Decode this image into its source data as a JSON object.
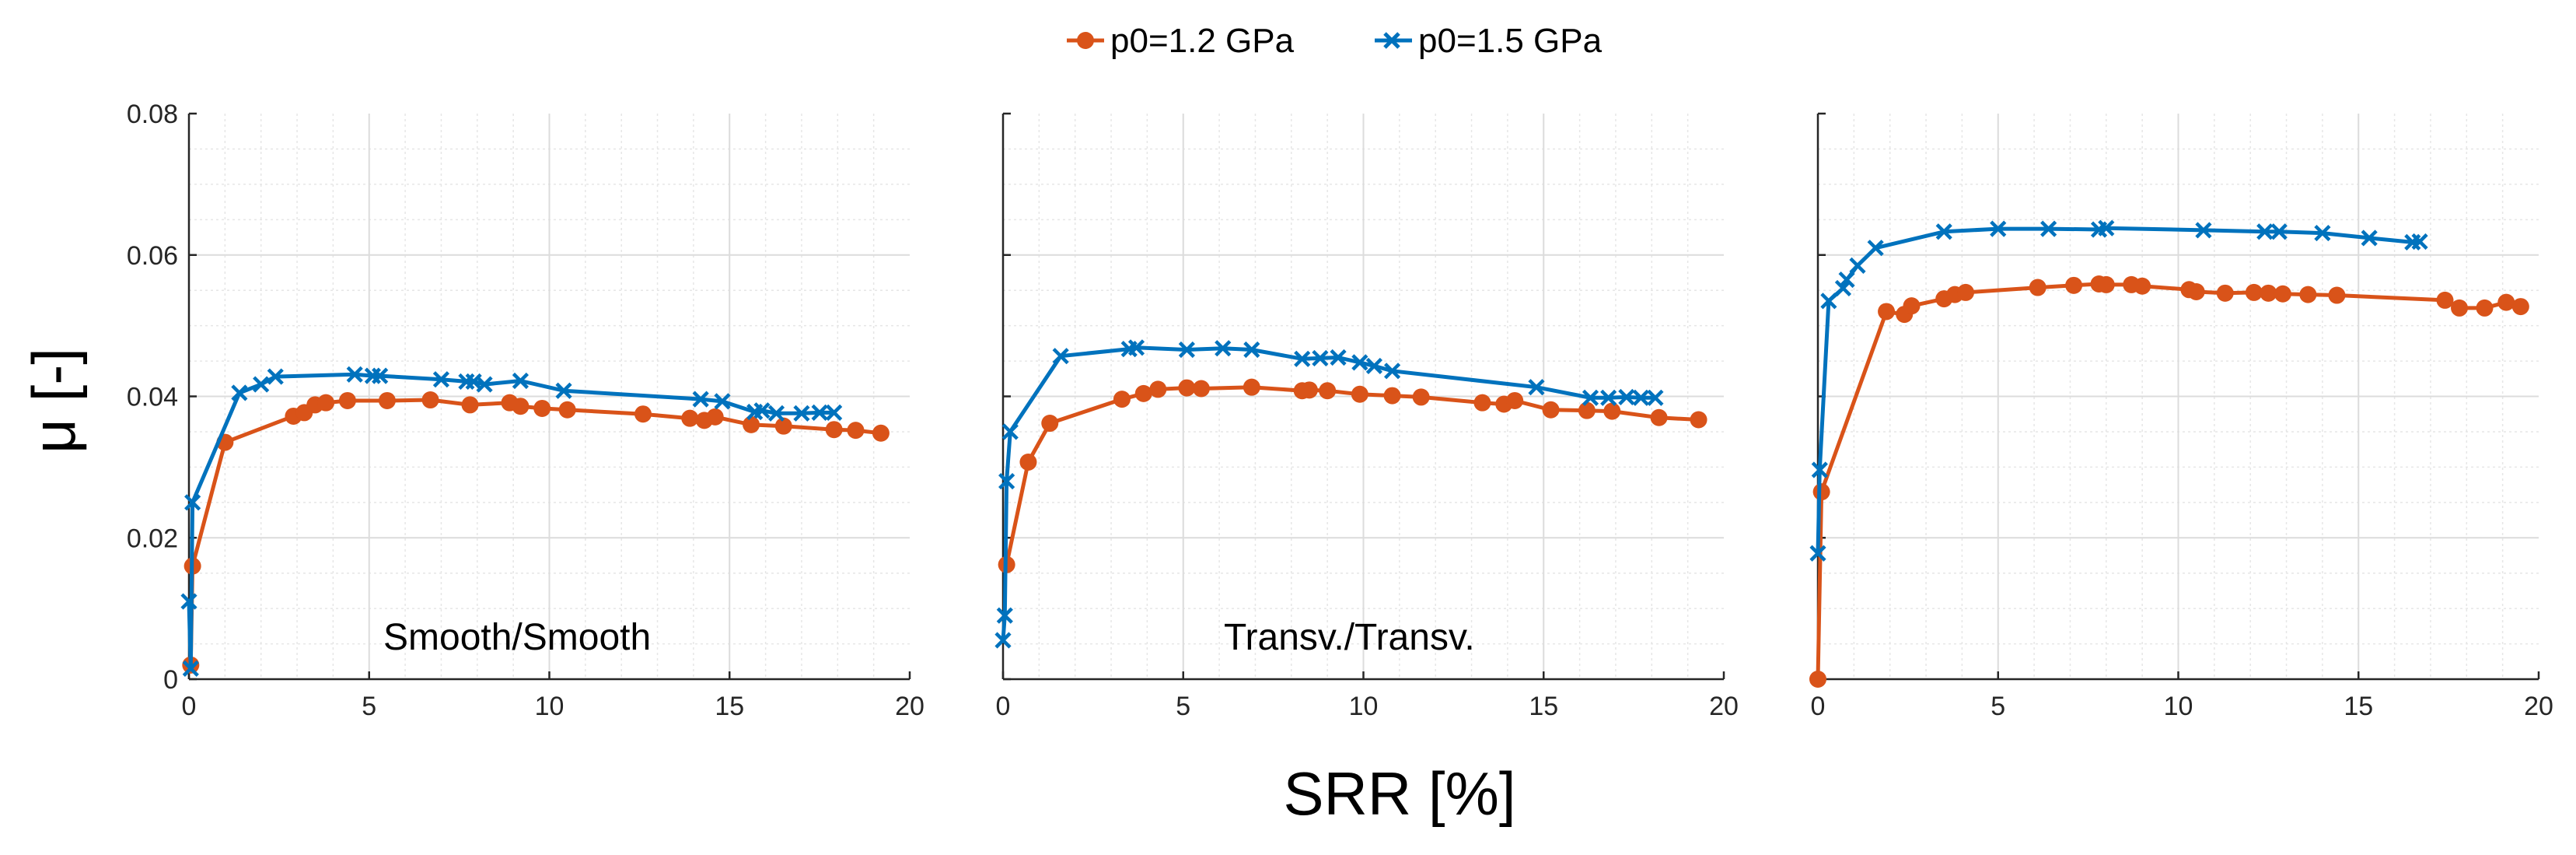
{
  "chart_data": {
    "type": "line",
    "xlabel": "SRR [%]",
    "ylabel": "μ [-]",
    "xlim": [
      0,
      20
    ],
    "ylim": [
      0,
      0.08
    ],
    "xticks": [
      0,
      5,
      10,
      15,
      20
    ],
    "xtick_labels": [
      "0",
      "5",
      "10",
      "15",
      "20"
    ],
    "yticks": [
      0,
      0.02,
      0.04,
      0.06,
      0.08
    ],
    "ytick_labels": [
      "0",
      "0.02",
      "0.04",
      "0.06",
      "0.08"
    ],
    "grid": true,
    "legend_position": "top-center",
    "legend": [
      {
        "name": "p0=1.2 GPa",
        "color": "#D95319",
        "marker": "circle"
      },
      {
        "name": "p0=1.5 GPa",
        "color": "#0072BD",
        "marker": "x"
      }
    ],
    "panels": [
      {
        "label": "Smooth/Smooth",
        "series": [
          {
            "name": "p0=1.2 GPa",
            "x": [
              0.05,
              0.1,
              1.0,
              2.9,
              3.2,
              3.5,
              3.8,
              4.4,
              5.5,
              6.7,
              7.8,
              8.9,
              9.2,
              9.8,
              10.5,
              12.6,
              13.9,
              14.3,
              14.6,
              15.6,
              16.5,
              17.9,
              18.5,
              19.2
            ],
            "y": [
              0.002,
              0.016,
              0.0335,
              0.0372,
              0.0377,
              0.0388,
              0.0391,
              0.0394,
              0.0394,
              0.0395,
              0.0388,
              0.0391,
              0.0386,
              0.0383,
              0.0381,
              0.0375,
              0.0369,
              0.0366,
              0.0371,
              0.036,
              0.0358,
              0.0353,
              0.0352,
              0.0348
            ]
          },
          {
            "name": "p0=1.5 GPa",
            "x": [
              0.0,
              0.05,
              0.1,
              1.4,
              2.0,
              2.4,
              4.6,
              5.1,
              5.3,
              7.0,
              7.7,
              7.9,
              8.2,
              9.2,
              10.4,
              14.2,
              14.8,
              15.7,
              15.9,
              16.3,
              17.0,
              17.5,
              17.9
            ],
            "y": [
              0.011,
              0.0015,
              0.025,
              0.0405,
              0.0417,
              0.0428,
              0.0431,
              0.0429,
              0.0429,
              0.0424,
              0.0421,
              0.0421,
              0.0417,
              0.0422,
              0.0408,
              0.0396,
              0.0393,
              0.0378,
              0.038,
              0.0376,
              0.0376,
              0.0377,
              0.0377
            ]
          }
        ]
      },
      {
        "label": "Transv./Transv.",
        "series": [
          {
            "name": "p0=1.2 GPa",
            "x": [
              0.1,
              0.7,
              1.3,
              3.3,
              3.9,
              4.3,
              5.1,
              5.5,
              6.9,
              8.3,
              8.5,
              9.0,
              9.9,
              10.8,
              11.6,
              13.3,
              13.9,
              14.2,
              15.2,
              16.2,
              16.9,
              18.2,
              19.3
            ],
            "y": [
              0.0162,
              0.0307,
              0.0362,
              0.0396,
              0.0404,
              0.041,
              0.0412,
              0.0411,
              0.0413,
              0.0408,
              0.0409,
              0.0408,
              0.0403,
              0.0401,
              0.0399,
              0.0391,
              0.0389,
              0.0394,
              0.0381,
              0.038,
              0.0379,
              0.037,
              0.0367
            ]
          },
          {
            "name": "p0=1.5 GPa",
            "x": [
              0.0,
              0.05,
              0.1,
              0.2,
              1.6,
              3.5,
              3.7,
              5.1,
              6.1,
              6.9,
              8.3,
              8.8,
              9.3,
              9.9,
              10.3,
              10.8,
              14.8,
              16.3,
              16.8,
              17.3,
              17.7,
              18.1
            ],
            "y": [
              0.0055,
              0.009,
              0.028,
              0.035,
              0.0457,
              0.0467,
              0.0469,
              0.0466,
              0.0468,
              0.0466,
              0.0453,
              0.0454,
              0.0455,
              0.0448,
              0.0443,
              0.0436,
              0.0413,
              0.0398,
              0.0398,
              0.0399,
              0.0398,
              0.0398
            ]
          }
        ]
      },
      {
        "label": "",
        "series": [
          {
            "name": "p0=1.2 GPa",
            "x": [
              0.0,
              0.1,
              1.9,
              2.4,
              2.6,
              3.5,
              3.8,
              4.1,
              6.1,
              7.1,
              7.8,
              8.0,
              8.7,
              9.0,
              10.3,
              10.5,
              11.3,
              12.1,
              12.5,
              12.9,
              13.6,
              14.4,
              17.4,
              17.8,
              18.5,
              19.1,
              19.5
            ],
            "y": [
              0.0,
              0.0265,
              0.052,
              0.0516,
              0.0528,
              0.0538,
              0.0544,
              0.0547,
              0.0554,
              0.0557,
              0.0559,
              0.0558,
              0.0558,
              0.0556,
              0.0551,
              0.0548,
              0.0546,
              0.0547,
              0.0546,
              0.0545,
              0.0544,
              0.0543,
              0.0536,
              0.0525,
              0.0525,
              0.0533,
              0.0527
            ]
          },
          {
            "name": "p0=1.5 GPa",
            "x": [
              0.0,
              0.05,
              0.3,
              0.7,
              0.8,
              1.1,
              1.6,
              3.5,
              5.0,
              6.4,
              7.8,
              8.0,
              10.7,
              12.4,
              12.8,
              14.0,
              15.3,
              16.5,
              16.7
            ],
            "y": [
              0.0178,
              0.0296,
              0.0535,
              0.0553,
              0.0565,
              0.0585,
              0.061,
              0.0633,
              0.0637,
              0.0637,
              0.0636,
              0.0638,
              0.0635,
              0.0633,
              0.0633,
              0.0631,
              0.0624,
              0.0618,
              0.0619
            ]
          }
        ]
      }
    ]
  }
}
